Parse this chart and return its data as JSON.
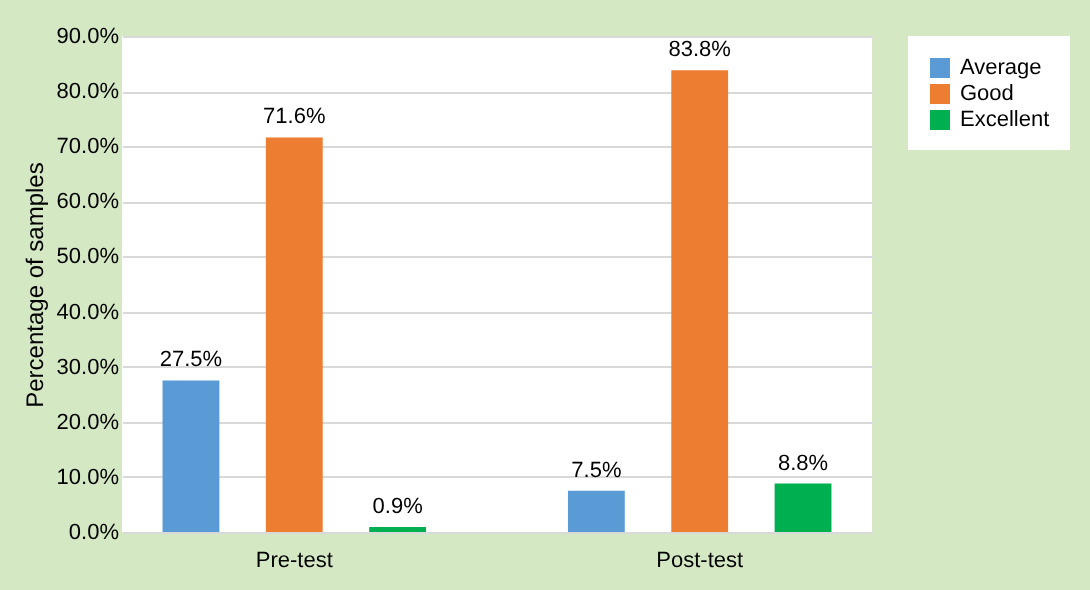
{
  "chart_data": {
    "type": "bar",
    "ylabel": "Percentage of samples",
    "categories": [
      "Pre-test",
      "Post-test"
    ],
    "series": [
      {
        "name": "Average",
        "color": "#5b9bd5",
        "values": [
          27.5,
          7.5
        ],
        "value_labels": [
          "27.5%",
          "7.5%"
        ]
      },
      {
        "name": "Good",
        "color": "#ed7d31",
        "values": [
          71.6,
          83.8
        ],
        "value_labels": [
          "71.6%",
          "83.8%"
        ]
      },
      {
        "name": "Excellent",
        "color": "#00b050",
        "values": [
          0.9,
          8.8
        ],
        "value_labels": [
          "0.9%",
          "8.8%"
        ]
      }
    ],
    "ylim": [
      0,
      90
    ],
    "yticks": [
      {
        "value": 0,
        "label": "0.0%"
      },
      {
        "value": 10,
        "label": "10.0%"
      },
      {
        "value": 20,
        "label": "20.0%"
      },
      {
        "value": 30,
        "label": "30.0%"
      },
      {
        "value": 40,
        "label": "40.0%"
      },
      {
        "value": 50,
        "label": "50.0%"
      },
      {
        "value": 60,
        "label": "60.0%"
      },
      {
        "value": 70,
        "label": "70.0%"
      },
      {
        "value": 80,
        "label": "80.0%"
      },
      {
        "value": 90,
        "label": "90.0%"
      }
    ],
    "grid": "y",
    "legend": "right"
  }
}
